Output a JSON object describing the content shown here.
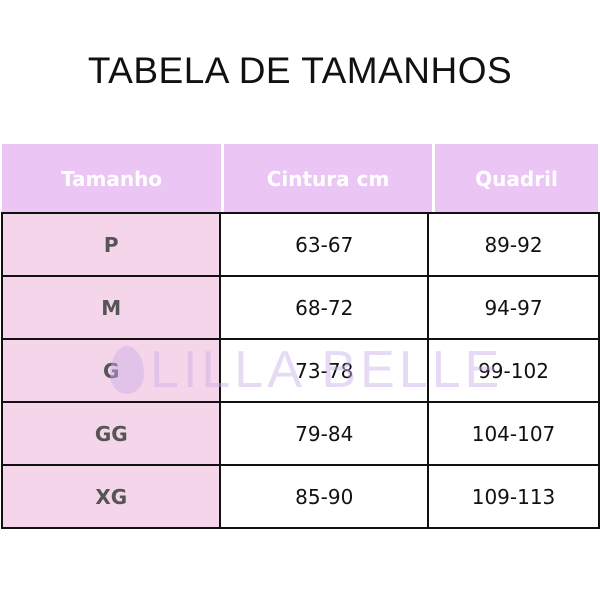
{
  "title": "TABELA DE TAMANHOS",
  "headers": [
    "Tamanho",
    "Cintura cm",
    "Quadril"
  ],
  "rows": [
    {
      "size": "P",
      "cintura": "63-67",
      "quadril": "89-92"
    },
    {
      "size": "M",
      "cintura": "68-72",
      "quadril": "94-97"
    },
    {
      "size": "G",
      "cintura": "73-78",
      "quadril": "99-102"
    },
    {
      "size": "GG",
      "cintura": "79-84",
      "quadril": "104-107"
    },
    {
      "size": "XG",
      "cintura": "85-90",
      "quadril": "109-113"
    }
  ],
  "watermark": "LILLA BELLE",
  "colors": {
    "header": "#ebc6f5",
    "size_column": "#f5d5ea"
  }
}
